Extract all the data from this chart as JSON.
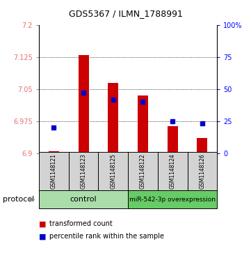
{
  "title": "GDS5367 / ILMN_1788991",
  "samples": [
    "GSM1148121",
    "GSM1148123",
    "GSM1148125",
    "GSM1148122",
    "GSM1148124",
    "GSM1148126"
  ],
  "red_values": [
    6.905,
    7.13,
    7.065,
    7.035,
    6.963,
    6.935
  ],
  "blue_values_pct": [
    20,
    47,
    42,
    40,
    25,
    23
  ],
  "y_min": 6.9,
  "y_max": 7.2,
  "y_ticks": [
    6.9,
    6.975,
    7.05,
    7.125,
    7.2
  ],
  "pct_ticks": [
    0,
    25,
    50,
    75,
    100
  ],
  "bar_color": "#cc0000",
  "dot_color": "#0000cc",
  "control_color": "#aaddaa",
  "overexp_color": "#66cc66",
  "sample_box_color": "#d3d3d3",
  "legend_red_label": "transformed count",
  "legend_blue_label": "percentile rank within the sample",
  "protocol_label": "protocol",
  "control_label": "control",
  "overexp_label": "miR-542-3p overexpression",
  "bar_width": 0.35,
  "title_fontsize": 9,
  "tick_fontsize": 7,
  "sample_fontsize": 5.5,
  "legend_fontsize": 7,
  "prot_fontsize": 8
}
